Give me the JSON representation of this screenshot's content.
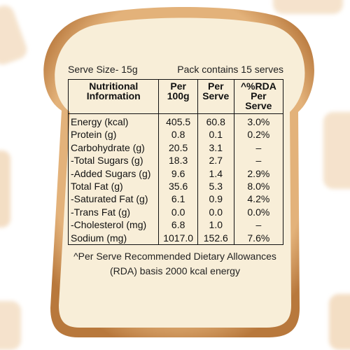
{
  "serve_size": "Serve Size- 15g",
  "pack_contains": "Pack contains 15 serves",
  "table": {
    "headers": [
      [
        "Nutritional",
        "Information"
      ],
      [
        "Per",
        "100g"
      ],
      [
        "Per",
        "Serve"
      ],
      [
        "^%RDA",
        "Per Serve"
      ]
    ],
    "rows": [
      [
        "Energy (kcal)",
        "405.5",
        "60.8",
        "3.0%"
      ],
      [
        "Protein (g)",
        "0.8",
        "0.1",
        "0.2%"
      ],
      [
        "Carbohydrate (g)",
        "20.5",
        "3.1",
        "–"
      ],
      [
        "-Total Sugars (g)",
        "18.3",
        "2.7",
        "–"
      ],
      [
        "-Added Sugars (g)",
        "9.6",
        "1.4",
        "2.9%"
      ],
      [
        "Total Fat (g)",
        "35.6",
        "5.3",
        "8.0%"
      ],
      [
        "-Saturated Fat (g)",
        "6.1",
        "0.9",
        "4.2%"
      ],
      [
        "-Trans Fat (g)",
        "0.0",
        "0.0",
        "0.0%"
      ],
      [
        "-Cholesterol (mg)",
        "6.8",
        "1.0",
        "–"
      ],
      [
        "Sodium (mg)",
        "1017.0",
        "152.6",
        "7.6%"
      ]
    ]
  },
  "footnote": [
    "^Per Serve Recommended Dietary Allowances",
    "(RDA) basis 2000 kcal energy"
  ]
}
